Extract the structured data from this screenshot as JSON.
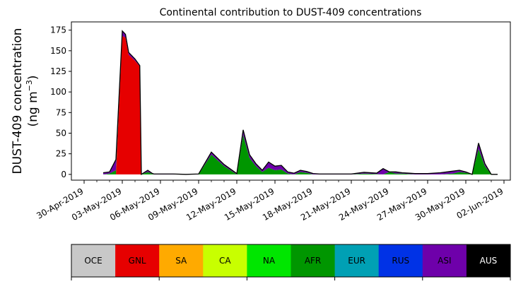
{
  "chart_data": {
    "type": "area",
    "stacked": true,
    "title": "Continental contribution to DUST-409 concentrations",
    "ylabel": {
      "line1": "DUST-409 concentration",
      "line2_prefix": "(ng m",
      "line2_sup": "−3",
      "line2_suffix": ")"
    },
    "xlabel": "",
    "ylim": [
      -7,
      185
    ],
    "xlim_days_label": "30-Apr-2019 to 02-Jun-2019",
    "y_ticks": [
      {
        "value": 0,
        "label": "0"
      },
      {
        "value": 25,
        "label": "25"
      },
      {
        "value": 50,
        "label": "50"
      },
      {
        "value": 75,
        "label": "75"
      },
      {
        "value": 100,
        "label": "100"
      },
      {
        "value": 125,
        "label": "125"
      },
      {
        "value": 150,
        "label": "150"
      },
      {
        "value": 175,
        "label": "175"
      }
    ],
    "x_ticks": [
      {
        "date": "2019-04-30",
        "label": "30-Apr-2019"
      },
      {
        "date": "2019-05-03",
        "label": "03-May-2019"
      },
      {
        "date": "2019-05-06",
        "label": "06-May-2019"
      },
      {
        "date": "2019-05-09",
        "label": "09-May-2019"
      },
      {
        "date": "2019-05-12",
        "label": "12-May-2019"
      },
      {
        "date": "2019-05-15",
        "label": "15-May-2019"
      },
      {
        "date": "2019-05-18",
        "label": "18-May-2019"
      },
      {
        "date": "2019-05-21",
        "label": "21-May-2019"
      },
      {
        "date": "2019-05-24",
        "label": "24-May-2019"
      },
      {
        "date": "2019-05-27",
        "label": "27-May-2019"
      },
      {
        "date": "2019-05-30",
        "label": "30-May-2019"
      },
      {
        "date": "2019-06-02",
        "label": "02-Jun-2019"
      }
    ],
    "x_minor_tick_dates": [
      "2019-05-01",
      "2019-05-02",
      "2019-05-04",
      "2019-05-05",
      "2019-05-07",
      "2019-05-08",
      "2019-05-10",
      "2019-05-11",
      "2019-05-13",
      "2019-05-14",
      "2019-05-16",
      "2019-05-17",
      "2019-05-19",
      "2019-05-20",
      "2019-05-22",
      "2019-05-23",
      "2019-05-25",
      "2019-05-26",
      "2019-05-28",
      "2019-05-29",
      "2019-05-31",
      "2019-06-01"
    ],
    "x": [
      "2019-05-01 12:00",
      "2019-05-02 00:00",
      "2019-05-02 12:00",
      "2019-05-03 00:00",
      "2019-05-03 06:00",
      "2019-05-03 12:00",
      "2019-05-04 00:00",
      "2019-05-04 09:00",
      "2019-05-04 12:00",
      "2019-05-05 00:00",
      "2019-05-05 09:00",
      "2019-05-05 12:00",
      "2019-05-06 00:00",
      "2019-05-06 12:00",
      "2019-05-07 00:00",
      "2019-05-08 00:00",
      "2019-05-09 00:00",
      "2019-05-10 00:00",
      "2019-05-11 00:00",
      "2019-05-12 00:00",
      "2019-05-12 12:00",
      "2019-05-13 00:00",
      "2019-05-13 12:00",
      "2019-05-14 00:00",
      "2019-05-14 12:00",
      "2019-05-15 00:00",
      "2019-05-15 12:00",
      "2019-05-16 00:00",
      "2019-05-16 12:00",
      "2019-05-17 00:00",
      "2019-05-17 12:00",
      "2019-05-18 00:00",
      "2019-05-18 12:00",
      "2019-05-19 00:00",
      "2019-05-19 12:00",
      "2019-05-20 00:00",
      "2019-05-21 00:00",
      "2019-05-22 00:00",
      "2019-05-23 00:00",
      "2019-05-23 12:00",
      "2019-05-24 00:00",
      "2019-05-24 12:00",
      "2019-05-25 00:00",
      "2019-05-25 12:00",
      "2019-05-26 00:00",
      "2019-05-26 12:00",
      "2019-05-27 00:00",
      "2019-05-28 00:00",
      "2019-05-29 00:00",
      "2019-05-29 12:00",
      "2019-05-30 00:00",
      "2019-05-30 12:00",
      "2019-05-31 00:00",
      "2019-05-31 12:00",
      "2019-06-01 00:00",
      "2019-06-01 12:00"
    ],
    "series": [
      {
        "name": "OCE",
        "color": "#c8c8c8",
        "values": [
          0,
          0,
          0,
          0,
          0,
          0,
          0,
          0,
          0,
          0,
          0,
          0,
          0,
          0,
          0,
          0,
          0,
          0,
          0,
          0,
          0,
          0,
          0,
          0,
          0,
          0,
          0,
          0,
          0,
          0,
          0,
          0,
          0,
          0,
          0,
          0,
          0,
          0,
          0,
          0,
          0,
          0,
          0,
          0,
          0,
          0,
          0,
          0,
          0,
          0,
          0,
          0,
          0,
          0,
          0,
          0
        ]
      },
      {
        "name": "GNL",
        "color": "#e60000",
        "values": [
          0,
          0,
          0,
          168,
          166,
          145,
          138,
          131,
          0,
          0,
          0,
          0,
          0,
          0,
          0,
          0,
          0,
          0,
          0,
          0,
          0,
          0,
          0,
          0,
          0,
          0,
          0,
          0,
          0,
          0,
          0,
          0,
          0,
          0,
          0,
          0,
          0,
          0,
          0,
          0,
          0,
          0,
          0,
          0,
          0,
          0,
          0,
          0,
          0,
          0,
          0,
          0,
          0,
          0,
          0,
          0
        ]
      },
      {
        "name": "SA",
        "color": "#ffaa00",
        "values": [
          0,
          0,
          0,
          0,
          0,
          0,
          0,
          0,
          0,
          0,
          0,
          0,
          0,
          0,
          0,
          0,
          0,
          0,
          0,
          0,
          0,
          0,
          0,
          0,
          0,
          0,
          0,
          0,
          0,
          0,
          0,
          0,
          0,
          0,
          0,
          0,
          0,
          0,
          0,
          0,
          0,
          0,
          0,
          0,
          0,
          0,
          0,
          0,
          0,
          0,
          0,
          0,
          0,
          0,
          0,
          0
        ]
      },
      {
        "name": "CA",
        "color": "#c8ff00",
        "values": [
          0,
          0,
          0,
          0,
          0,
          0,
          0,
          0,
          0,
          0,
          0,
          0,
          0,
          0,
          0,
          0,
          0,
          0,
          0,
          0,
          0,
          0,
          0,
          0,
          0,
          0,
          0,
          0,
          0,
          0,
          0,
          0,
          0,
          0,
          0,
          0,
          0,
          0,
          0,
          0,
          0,
          0,
          0,
          0,
          0,
          0,
          0,
          0,
          0,
          0,
          0,
          0,
          0,
          0,
          0,
          0
        ]
      },
      {
        "name": "NA",
        "color": "#00e600",
        "values": [
          0,
          0,
          0,
          0,
          0,
          0,
          0,
          0,
          0,
          0,
          0,
          0,
          0,
          0,
          0,
          0,
          0,
          0,
          0,
          0,
          0,
          0,
          0,
          0,
          0,
          0,
          0,
          0,
          0,
          0,
          0,
          0,
          0,
          0,
          0,
          0,
          0,
          0,
          0,
          0,
          0,
          0,
          0,
          0,
          0,
          0,
          0,
          0,
          0,
          0,
          0,
          0,
          0,
          0,
          0,
          0
        ]
      },
      {
        "name": "AFR",
        "color": "#009600",
        "values": [
          0,
          1,
          5,
          0,
          0,
          0,
          0,
          0,
          0,
          3,
          0.5,
          0,
          0,
          0,
          0,
          0,
          0,
          24,
          10,
          0,
          48,
          20,
          10,
          3,
          8,
          5,
          6,
          1,
          0,
          3,
          2,
          0,
          0,
          0,
          0,
          0,
          0,
          1,
          0.5,
          0,
          3,
          1,
          1,
          0.5,
          0,
          0,
          0,
          0,
          1,
          3,
          2,
          0,
          31,
          10,
          0,
          0
        ]
      },
      {
        "name": "EUR",
        "color": "#00a0b4",
        "values": [
          0,
          0,
          0,
          0,
          0,
          0,
          0,
          0,
          0,
          0,
          0,
          0,
          0,
          0,
          0,
          0,
          0,
          0,
          0,
          0,
          0,
          0,
          0,
          0,
          0,
          0,
          0,
          0,
          0,
          0,
          0,
          0,
          0,
          0,
          0,
          0,
          0,
          0,
          0,
          0,
          0,
          0,
          0,
          0,
          0,
          0,
          0,
          0,
          0,
          0,
          0,
          0,
          0,
          0,
          0,
          0
        ]
      },
      {
        "name": "RUS",
        "color": "#0032e6",
        "values": [
          0,
          0,
          0,
          0,
          0,
          0,
          0,
          0,
          0,
          0,
          0,
          0,
          0,
          0,
          0,
          0,
          0,
          0,
          0,
          0,
          0,
          0,
          0,
          0,
          0,
          0,
          0,
          0,
          0,
          0,
          0,
          0,
          0,
          0,
          0,
          0,
          0,
          0,
          0,
          0,
          0,
          0,
          0,
          0,
          0,
          0,
          0,
          0,
          0,
          0,
          0,
          0,
          0,
          0,
          0,
          0
        ]
      },
      {
        "name": "ASI",
        "color": "#6e00aa",
        "values": [
          2,
          2,
          13,
          6,
          4,
          3,
          2,
          1,
          0,
          2,
          0.5,
          0.5,
          0.5,
          0.5,
          0.5,
          0,
          0.5,
          3,
          2,
          1,
          6,
          4,
          3,
          2,
          7,
          5,
          5,
          2,
          1.5,
          2,
          1.5,
          1,
          0.5,
          0.5,
          0.5,
          0.5,
          0.5,
          1.5,
          1,
          7,
          0,
          2,
          1,
          1,
          1,
          1,
          1,
          2,
          3,
          2,
          1,
          0,
          7,
          3,
          0,
          0
        ]
      },
      {
        "name": "AUS",
        "color": "#000000",
        "values": [
          0,
          0,
          0,
          0,
          0,
          0,
          0,
          0,
          0,
          0,
          0,
          0,
          0,
          0,
          0,
          0,
          0,
          0,
          0,
          0,
          0,
          0,
          0,
          0,
          0,
          0,
          0,
          0,
          0,
          0,
          0,
          0,
          0,
          0,
          0,
          0,
          0,
          0,
          0,
          0,
          0,
          0,
          0,
          0,
          0,
          0,
          0,
          0,
          0,
          0,
          0,
          0,
          0,
          0,
          0,
          0
        ]
      }
    ],
    "legend": {
      "placement": "below",
      "entries": [
        {
          "name": "OCE",
          "color": "#c8c8c8",
          "text_color": "#000000"
        },
        {
          "name": "GNL",
          "color": "#e60000",
          "text_color": "#000000"
        },
        {
          "name": "SA",
          "color": "#ffaa00",
          "text_color": "#000000"
        },
        {
          "name": "CA",
          "color": "#c8ff00",
          "text_color": "#000000"
        },
        {
          "name": "NA",
          "color": "#00e600",
          "text_color": "#000000"
        },
        {
          "name": "AFR",
          "color": "#009600",
          "text_color": "#000000"
        },
        {
          "name": "EUR",
          "color": "#00a0b4",
          "text_color": "#000000"
        },
        {
          "name": "RUS",
          "color": "#0032e6",
          "text_color": "#000000"
        },
        {
          "name": "ASI",
          "color": "#6e00aa",
          "text_color": "#000000"
        },
        {
          "name": "AUS",
          "color": "#000000",
          "text_color": "#ffffff"
        }
      ]
    },
    "grid": false
  }
}
